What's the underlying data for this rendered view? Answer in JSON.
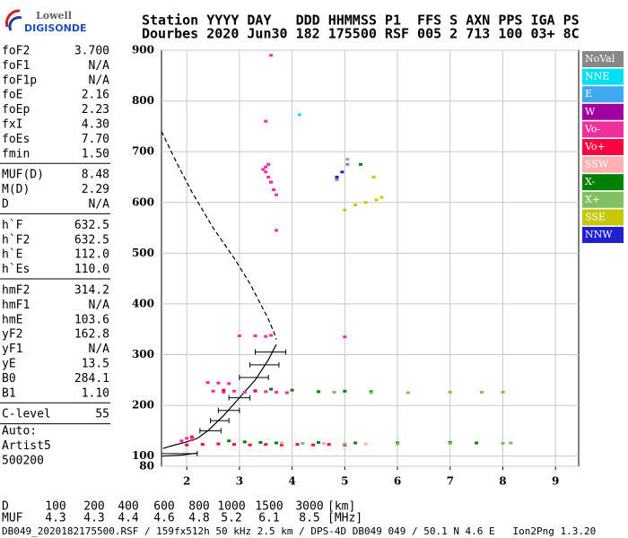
{
  "logo": {
    "line1": "Lowell",
    "line2": "DIGISONDE"
  },
  "header": {
    "line1": "Station YYYY DAY   DDD HHMMSS P1  FFS S AXN PPS IGA PS",
    "line2": "Dourbes 2020 Jun30 182 175500 RSF 005 2 713 100 03+ 8C"
  },
  "parameters": [
    [
      [
        "foF2",
        "3.700"
      ],
      [
        "foF1",
        "N/A"
      ],
      [
        "foF1p",
        "N/A"
      ],
      [
        "foE",
        "2.16"
      ],
      [
        "foEp",
        "2.23"
      ],
      [
        "fxI",
        "4.30"
      ],
      [
        "foEs",
        "7.70"
      ],
      [
        "fmin",
        "1.50"
      ]
    ],
    [
      [
        "MUF(D)",
        "8.48"
      ],
      [
        "M(D)",
        "2.29"
      ],
      [
        "D",
        "N/A"
      ]
    ],
    [
      [
        "h`F",
        "632.5"
      ],
      [
        "h`F2",
        "632.5"
      ],
      [
        "h`E",
        "112.0"
      ],
      [
        "h`Es",
        "110.0"
      ]
    ],
    [
      [
        "hmF2",
        "314.2"
      ],
      [
        "hmF1",
        "N/A"
      ],
      [
        "hmE",
        "103.6"
      ],
      [
        "yF2",
        "162.8"
      ],
      [
        "yF1",
        "N/A"
      ],
      [
        "yE",
        "13.5"
      ],
      [
        "B0",
        "284.1"
      ],
      [
        "B1",
        "1.10"
      ]
    ],
    [
      [
        "C-level",
        "55"
      ]
    ]
  ],
  "auto": [
    "Auto:",
    "Artist5",
    "500200"
  ],
  "muf_table": {
    "d_label": "D",
    "d_values": [
      "100",
      "200",
      "400",
      "600",
      "800",
      "1000",
      "1500",
      "3000"
    ],
    "d_unit": "[km]",
    "muf_label": "MUF",
    "muf_values": [
      "4.3",
      "4.3",
      "4.4",
      "4.6",
      "4.8",
      "5.2",
      "6.1",
      "8.5"
    ],
    "muf_unit": "[MHz]"
  },
  "footer": "DB049_2020182175500.RSF / 159fx512h 50 kHz 2.5 km / DPS-4D DB049 049 / 50.1 N 4.6 E   Ion2Png 1.3.20",
  "chart_data": {
    "type": "scatter",
    "xlim": [
      1.52,
      9.44
    ],
    "ylim": [
      80,
      900
    ],
    "xticks": [
      2,
      3,
      4,
      5,
      6,
      7,
      8,
      9
    ],
    "yticks": [
      80,
      100,
      200,
      300,
      400,
      500,
      600,
      700,
      800,
      900
    ],
    "grid": true,
    "series": [
      {
        "name": "NoVal",
        "color": "#888888",
        "x": [
          4.85,
          5.05
        ],
        "y": [
          645,
          675
        ]
      },
      {
        "name": "NNE",
        "color": "#00e0f0",
        "x": [
          4.14
        ],
        "y": [
          773
        ]
      },
      {
        "name": "E",
        "color": "#40a8f0",
        "x": [],
        "y": []
      },
      {
        "name": "W",
        "color": "#a000a0",
        "x": [
          3.6
        ],
        "y": [
          640
        ]
      },
      {
        "name": "Vo-",
        "color": "#f0309a",
        "x": [
          3.45,
          3.5,
          3.55,
          3.6,
          3.65,
          3.7,
          3.5,
          3.55,
          3.5,
          3.6,
          3.7,
          2.4,
          2.6,
          2.8,
          2.5,
          2.7,
          2.9,
          3.1,
          3.3,
          3.5,
          3.7,
          3.9,
          3.0,
          3.3,
          3.5,
          3.6,
          5.0,
          1.9,
          2.0,
          2.1
        ],
        "y": [
          665,
          660,
          650,
          640,
          625,
          615,
          670,
          675,
          760,
          890,
          545,
          245,
          244,
          243,
          228,
          226,
          228,
          226,
          228,
          227,
          226,
          225,
          337,
          337,
          336,
          338,
          335,
          130,
          135,
          132
        ]
      },
      {
        "name": "Vo+",
        "color": "#ff0040",
        "x": [
          2.0,
          2.3,
          2.6,
          2.9,
          3.2,
          3.5,
          3.8,
          4.1,
          4.4,
          4.7,
          5.0,
          2.1,
          2.7,
          3.3
        ],
        "y": [
          122,
          123,
          124,
          123,
          122,
          123,
          122,
          123,
          122,
          123,
          122,
          138,
          230,
          229
        ]
      },
      {
        "name": "SSW",
        "color": "#ffb0b0",
        "x": [
          3.8,
          4.6,
          5.4
        ],
        "y": [
          126,
          125,
          124
        ]
      },
      {
        "name": "X-",
        "color": "#008000",
        "x": [
          2.8,
          3.1,
          3.4,
          3.7,
          4.5,
          5.2,
          6.0,
          7.0,
          7.5,
          3.6,
          4.0,
          4.5,
          5.0,
          5.5,
          5.3
        ],
        "y": [
          130,
          128,
          127,
          126,
          127,
          126,
          126,
          127,
          126,
          232,
          230,
          227,
          228,
          227,
          675
        ]
      },
      {
        "name": "X+",
        "color": "#80c060",
        "x": [
          4.2,
          5.0,
          6.0,
          7.0,
          8.0,
          8.15,
          4.8,
          5.5,
          6.2,
          7.0,
          7.6,
          8.0,
          5.05
        ],
        "y": [
          125,
          124,
          124,
          125,
          125,
          126,
          226,
          225,
          225,
          226,
          226,
          226,
          685
        ]
      },
      {
        "name": "SSE",
        "color": "#c8c800",
        "x": [
          5.0,
          5.2,
          5.4,
          5.6,
          5.7,
          5.55
        ],
        "y": [
          585,
          595,
          600,
          605,
          610,
          650
        ]
      },
      {
        "name": "NNW",
        "color": "#2020d0",
        "x": [
          4.85,
          4.95
        ],
        "y": [
          650,
          660
        ]
      }
    ],
    "profile_lines": [
      {
        "style": "dashed",
        "x": [
          1.52,
          1.8,
          2.1,
          2.5,
          2.9,
          3.2,
          3.4,
          3.55,
          3.65,
          3.7
        ],
        "y": [
          740,
          680,
          620,
          550,
          490,
          440,
          400,
          370,
          345,
          330
        ]
      },
      {
        "style": "solid",
        "x": [
          3.7,
          3.55,
          3.3,
          3.0,
          2.7,
          2.4,
          2.2,
          2.0,
          1.7,
          1.55
        ],
        "y": [
          320,
          290,
          250,
          215,
          180,
          150,
          135,
          128,
          120,
          115
        ]
      },
      {
        "style": "solid",
        "x": [
          1.52,
          1.9,
          2.2
        ],
        "y": [
          100,
          102,
          106
        ]
      }
    ],
    "height_errors": {
      "y": [
        305,
        280,
        255,
        215,
        190,
        170,
        150,
        105
      ],
      "x_low": [
        3.3,
        3.2,
        3.0,
        2.8,
        2.6,
        2.45,
        2.25,
        1.52
      ],
      "x_high": [
        3.88,
        3.75,
        3.55,
        3.2,
        3.0,
        2.8,
        2.65,
        2.2
      ]
    }
  }
}
